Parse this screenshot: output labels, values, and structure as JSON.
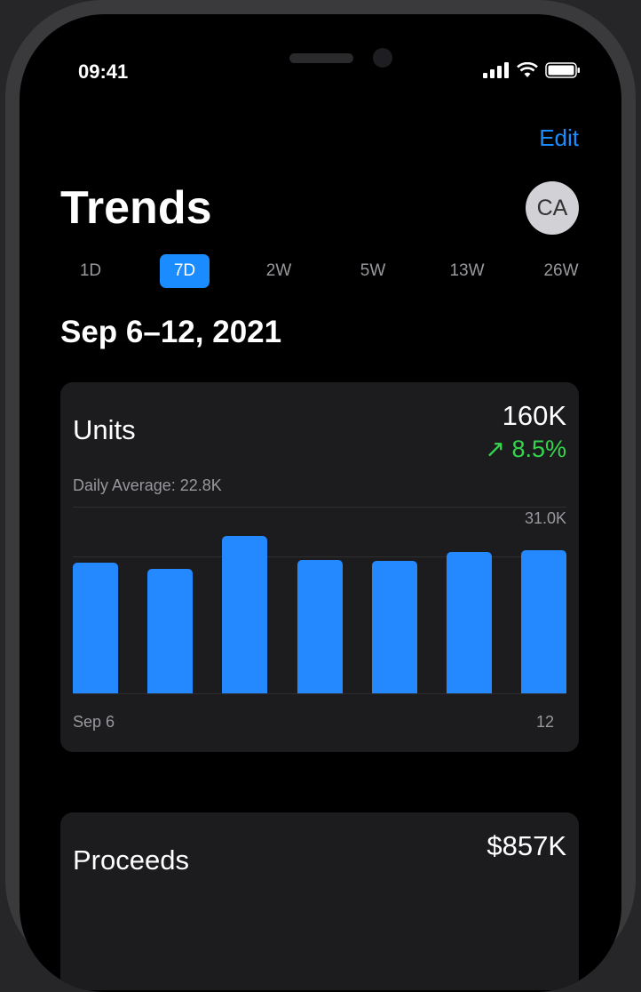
{
  "status_bar": {
    "time": "09:41",
    "icons": [
      "signal-icon",
      "wifi-icon",
      "battery-icon"
    ]
  },
  "nav": {
    "edit_label": "Edit"
  },
  "header": {
    "title": "Trends",
    "avatar_initials": "CA"
  },
  "ranges": [
    {
      "label": "1D"
    },
    {
      "label": "7D",
      "selected": true
    },
    {
      "label": "2W"
    },
    {
      "label": "5W"
    },
    {
      "label": "13W"
    },
    {
      "label": "26W"
    }
  ],
  "date_range": "Sep 6–12, 2021",
  "units_card": {
    "title": "Units",
    "total": "160K",
    "change": "8.5%",
    "change_direction": "up",
    "daily_average": "Daily Average: 22.8K"
  },
  "chart_data": {
    "type": "bar",
    "categories": [
      "Sep 6",
      "Sep 7",
      "Sep 8",
      "Sep 9",
      "Sep 10",
      "Sep 11",
      "Sep 12"
    ],
    "values": [
      21700,
      20700,
      26200,
      22200,
      22000,
      23500,
      23700
    ],
    "ylim": [
      0,
      31000
    ],
    "max_label": "31.0K",
    "x_tick_labels": [
      "Sep 6",
      "12"
    ],
    "average_line": 22800,
    "color": "#2489ff",
    "grid": true
  },
  "proceeds_card": {
    "title": "Proceeds",
    "total": "$857K"
  },
  "colors": {
    "accent": "#1a8cff",
    "positive": "#32d74b",
    "background": "#000000",
    "card": "#1c1c1e"
  }
}
